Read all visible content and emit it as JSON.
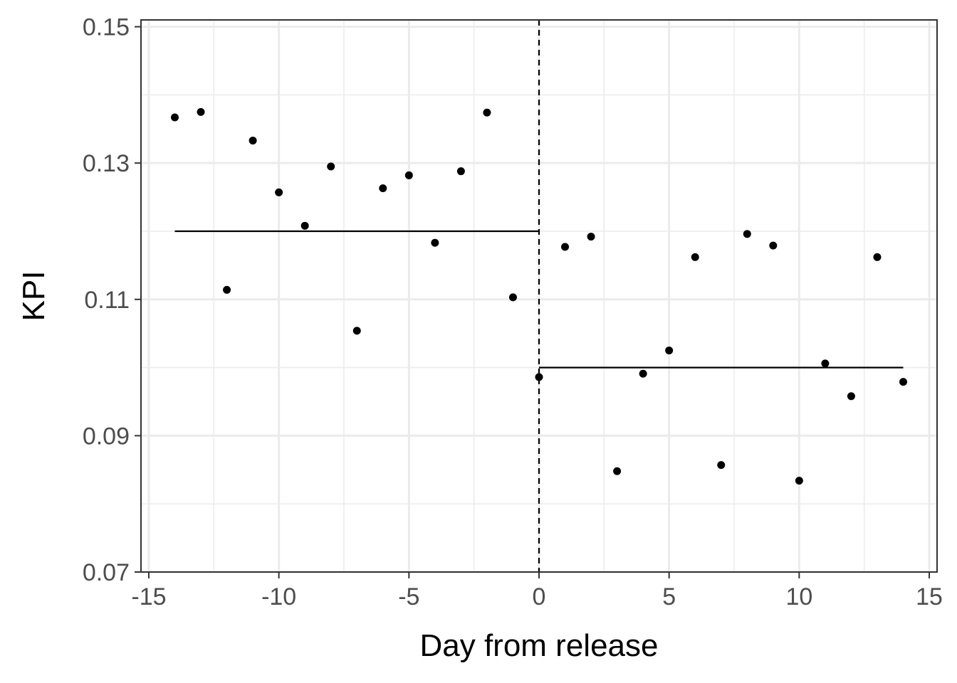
{
  "chart_data": {
    "type": "scatter",
    "title": "",
    "xlabel": "Day from release",
    "ylabel": "KPI",
    "xlim": [
      -15.3,
      15.3
    ],
    "ylim": [
      0.07,
      0.151
    ],
    "x_ticks": [
      -15,
      -10,
      -5,
      0,
      5,
      10,
      15
    ],
    "x_tick_labels": [
      "-15",
      "-10",
      "-5",
      "0",
      "5",
      "10",
      "15"
    ],
    "y_ticks": [
      0.07,
      0.09,
      0.11,
      0.13,
      0.15
    ],
    "y_tick_labels": [
      "0.07",
      "0.09",
      "0.11",
      "0.13",
      "0.15"
    ],
    "grid": true,
    "theme": "bw",
    "points": [
      {
        "x": -14,
        "y": 0.1367
      },
      {
        "x": -13,
        "y": 0.1375
      },
      {
        "x": -12,
        "y": 0.1114
      },
      {
        "x": -11,
        "y": 0.1333
      },
      {
        "x": -10,
        "y": 0.1257
      },
      {
        "x": -9,
        "y": 0.1208
      },
      {
        "x": -8,
        "y": 0.1295
      },
      {
        "x": -7,
        "y": 0.1054
      },
      {
        "x": -6,
        "y": 0.1263
      },
      {
        "x": -5,
        "y": 0.1282
      },
      {
        "x": -4,
        "y": 0.1183
      },
      {
        "x": -3,
        "y": 0.1288
      },
      {
        "x": -2,
        "y": 0.1374
      },
      {
        "x": -1,
        "y": 0.1103
      },
      {
        "x": 0,
        "y": 0.0986
      },
      {
        "x": 1,
        "y": 0.1177
      },
      {
        "x": 2,
        "y": 0.1192
      },
      {
        "x": 3,
        "y": 0.0848
      },
      {
        "x": 4,
        "y": 0.0991
      },
      {
        "x": 5,
        "y": 0.1025
      },
      {
        "x": 6,
        "y": 0.1162
      },
      {
        "x": 7,
        "y": 0.0857
      },
      {
        "x": 8,
        "y": 0.1196
      },
      {
        "x": 9,
        "y": 0.1179
      },
      {
        "x": 10,
        "y": 0.0834
      },
      {
        "x": 11,
        "y": 0.1006
      },
      {
        "x": 12,
        "y": 0.0958
      },
      {
        "x": 13,
        "y": 0.1162
      },
      {
        "x": 14,
        "y": 0.0979
      }
    ],
    "segments": [
      {
        "x": [
          -14,
          0
        ],
        "y": [
          0.12,
          0.12
        ]
      },
      {
        "x": [
          0,
          14
        ],
        "y": [
          0.1,
          0.1
        ]
      }
    ],
    "vline": {
      "x": 0,
      "style": "dashed"
    },
    "colors": {
      "point": "#000000",
      "line": "#000000",
      "grid": "#ebebeb",
      "border": "#333333",
      "tick_text": "#4d4d4d"
    }
  }
}
